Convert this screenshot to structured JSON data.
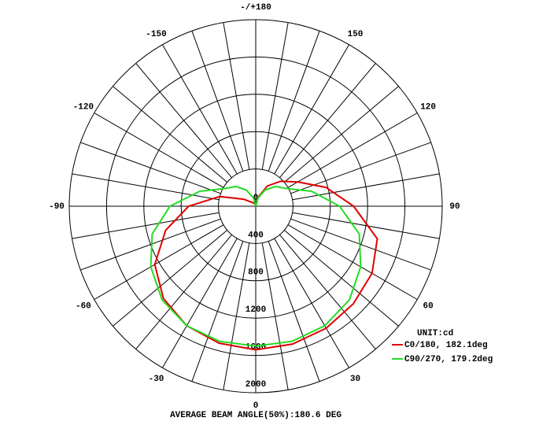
{
  "chart_data": {
    "type": "polar",
    "rlim": [
      0,
      2000
    ],
    "rticks": [
      0,
      400,
      800,
      1200,
      1600,
      2000
    ],
    "angle_ticks": [
      {
        "value": 180,
        "label": "-/+180"
      },
      150,
      120,
      90,
      60,
      30,
      0,
      -30,
      -60,
      -90,
      -120,
      -150
    ],
    "x": [
      -180,
      -165,
      -150,
      -135,
      -120,
      -105,
      -90,
      -75,
      -60,
      -45,
      -30,
      -15,
      0,
      15,
      30,
      45,
      60,
      75,
      90,
      105,
      120,
      135,
      150,
      165,
      180
    ],
    "series": [
      {
        "name": "C0/180, 182.1deg",
        "color": "#e00000",
        "values": [
          0,
          20,
          40,
          60,
          150,
          400,
          720,
          1000,
          1250,
          1400,
          1480,
          1520,
          1540,
          1530,
          1510,
          1480,
          1440,
          1350,
          1050,
          780,
          520,
          380,
          250,
          100,
          0
        ]
      },
      {
        "name": "C90/270, 179.2deg",
        "color": "#22dd22",
        "values": [
          0,
          90,
          200,
          300,
          380,
          620,
          920,
          1150,
          1300,
          1420,
          1480,
          1500,
          1500,
          1500,
          1480,
          1420,
          1300,
          1150,
          900,
          620,
          380,
          300,
          200,
          90,
          0
        ]
      }
    ],
    "unit_label": "UNIT:cd",
    "footer": "AVERAGE BEAM ANGLE(50%):180.6 DEG"
  }
}
